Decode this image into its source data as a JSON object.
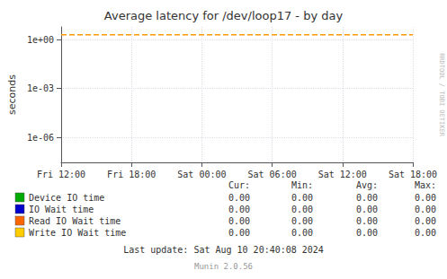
{
  "chart_data": {
    "type": "line",
    "title": "Average latency for /dev/loop17 - by day",
    "ylabel": "seconds",
    "log": "y",
    "grid": true,
    "xlim": [
      0,
      30
    ],
    "xticks": [
      {
        "value": 0,
        "label": "Fri 12:00"
      },
      {
        "value": 6,
        "label": "Fri 18:00"
      },
      {
        "value": 12,
        "label": "Sat 00:00"
      },
      {
        "value": 18,
        "label": "Sat 06:00"
      },
      {
        "value": 24,
        "label": "Sat 12:00"
      },
      {
        "value": 30,
        "label": "Sat 18:00"
      }
    ],
    "ylim": [
      3e-08,
      6.0
    ],
    "yticks": [
      {
        "value": 1e-06,
        "label": "1e-06"
      },
      {
        "value": 0.001,
        "label": "1e-03"
      },
      {
        "value": 1.0,
        "label": "1e+00"
      }
    ],
    "annotations": [
      {
        "type": "hline",
        "y": 2.0,
        "color": "#ff9900",
        "line_style": "dashed"
      }
    ],
    "stat_headers": [
      "Cur:",
      "Min:",
      "Avg:",
      "Max:"
    ],
    "series": [
      {
        "name": "Device IO time",
        "color": "#00aa00",
        "values": [],
        "stats": [
          {
            "value": 0,
            "label": "0.00"
          },
          {
            "value": 0,
            "label": "0.00"
          },
          {
            "value": 0,
            "label": "0.00"
          },
          {
            "value": 0,
            "label": "0.00"
          }
        ]
      },
      {
        "name": "IO Wait time",
        "color": "#0000cc",
        "values": [],
        "stats": [
          {
            "value": 0,
            "label": "0.00"
          },
          {
            "value": 0,
            "label": "0.00"
          },
          {
            "value": 0,
            "label": "0.00"
          },
          {
            "value": 0,
            "label": "0.00"
          }
        ]
      },
      {
        "name": "Read IO Wait time",
        "color": "#ff6600",
        "values": [],
        "stats": [
          {
            "value": 0,
            "label": "0.00"
          },
          {
            "value": 0,
            "label": "0.00"
          },
          {
            "value": 0,
            "label": "0.00"
          },
          {
            "value": 0,
            "label": "0.00"
          }
        ]
      },
      {
        "name": "Write IO Wait time",
        "color": "#ffcc00",
        "values": [],
        "stats": [
          {
            "value": 0,
            "label": "0.00"
          },
          {
            "value": 0,
            "label": "0.00"
          },
          {
            "value": 0,
            "label": "0.00"
          },
          {
            "value": 0,
            "label": "0.00"
          }
        ]
      }
    ],
    "watermark": "RRDTOOL / TOBI OETIKER",
    "notes": [
      "Last update: Sat Aug 10 20:40:08 2024",
      "Munin 2.0.56"
    ]
  }
}
